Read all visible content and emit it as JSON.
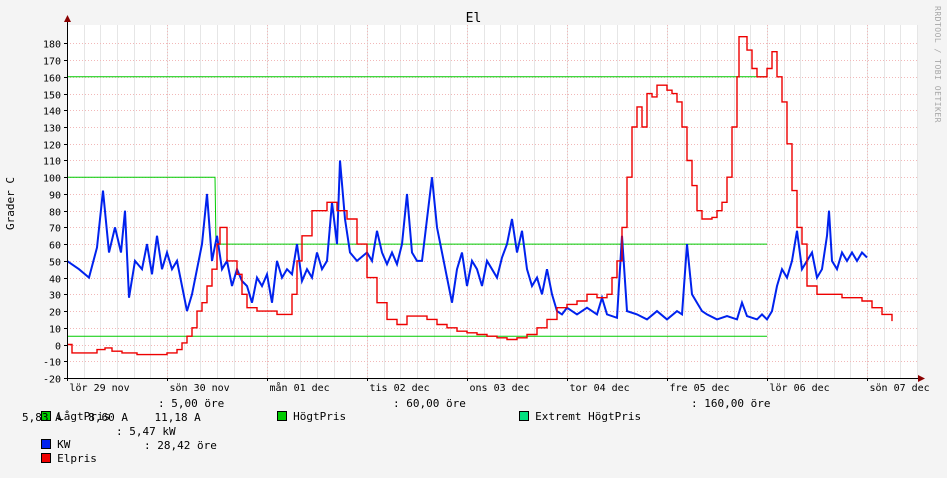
{
  "chart_data": {
    "type": "line",
    "title": "El",
    "ylabel": "Grader C",
    "ylim": [
      -20,
      185
    ],
    "yticks": [
      -20,
      -10,
      0,
      10,
      20,
      30,
      40,
      50,
      60,
      70,
      80,
      90,
      100,
      110,
      120,
      130,
      140,
      150,
      160,
      170,
      180
    ],
    "xlim_days": [
      0,
      8.5
    ],
    "xtick_labels": [
      "lör 29 nov",
      "sön 30 nov",
      "mån 01 dec",
      "tis 02 dec",
      "ons 03 dec",
      "tor 04 dec",
      "fre 05 dec",
      "lör 06 dec",
      "sön 07 dec"
    ],
    "watermark": "RRDTOOL / TOBI OETIKER",
    "series": [
      {
        "name": "LågtPris",
        "color": "#00cc00",
        "style": "line",
        "points": [
          [
            0,
            5
          ],
          [
            7.0,
            5
          ]
        ]
      },
      {
        "name": "HögtPris",
        "color": "#00cc00",
        "style": "line",
        "points": [
          [
            0,
            100
          ],
          [
            1.48,
            100
          ],
          [
            1.49,
            60
          ],
          [
            7.0,
            60
          ]
        ]
      },
      {
        "name": "Extremt HögtPris",
        "color": "#00cc00",
        "style": "line",
        "points": [
          [
            0,
            160
          ],
          [
            7.0,
            160
          ]
        ]
      },
      {
        "name": "KW",
        "color": "#0022ee",
        "style": "line",
        "points": [
          [
            0,
            50
          ],
          [
            0.12,
            45
          ],
          [
            0.22,
            40
          ],
          [
            0.3,
            58
          ],
          [
            0.36,
            92
          ],
          [
            0.42,
            55
          ],
          [
            0.48,
            70
          ],
          [
            0.54,
            55
          ],
          [
            0.58,
            80
          ],
          [
            0.62,
            28
          ],
          [
            0.68,
            50
          ],
          [
            0.75,
            45
          ],
          [
            0.8,
            60
          ],
          [
            0.85,
            42
          ],
          [
            0.9,
            65
          ],
          [
            0.95,
            45
          ],
          [
            1.0,
            55
          ],
          [
            1.05,
            45
          ],
          [
            1.1,
            50
          ],
          [
            1.15,
            35
          ],
          [
            1.2,
            20
          ],
          [
            1.25,
            30
          ],
          [
            1.3,
            45
          ],
          [
            1.35,
            60
          ],
          [
            1.4,
            90
          ],
          [
            1.45,
            50
          ],
          [
            1.5,
            65
          ],
          [
            1.55,
            45
          ],
          [
            1.6,
            50
          ],
          [
            1.65,
            35
          ],
          [
            1.7,
            45
          ],
          [
            1.75,
            38
          ],
          [
            1.8,
            35
          ],
          [
            1.85,
            25
          ],
          [
            1.9,
            40
          ],
          [
            1.95,
            35
          ],
          [
            2.0,
            42
          ],
          [
            2.05,
            25
          ],
          [
            2.1,
            50
          ],
          [
            2.15,
            40
          ],
          [
            2.2,
            45
          ],
          [
            2.25,
            42
          ],
          [
            2.3,
            60
          ],
          [
            2.35,
            38
          ],
          [
            2.4,
            45
          ],
          [
            2.45,
            40
          ],
          [
            2.5,
            55
          ],
          [
            2.55,
            45
          ],
          [
            2.6,
            50
          ],
          [
            2.65,
            85
          ],
          [
            2.7,
            60
          ],
          [
            2.73,
            110
          ],
          [
            2.78,
            75
          ],
          [
            2.83,
            55
          ],
          [
            2.9,
            50
          ],
          [
            3.0,
            55
          ],
          [
            3.05,
            50
          ],
          [
            3.1,
            68
          ],
          [
            3.15,
            55
          ],
          [
            3.2,
            48
          ],
          [
            3.25,
            55
          ],
          [
            3.3,
            48
          ],
          [
            3.35,
            60
          ],
          [
            3.4,
            90
          ],
          [
            3.45,
            55
          ],
          [
            3.5,
            50
          ],
          [
            3.55,
            50
          ],
          [
            3.6,
            75
          ],
          [
            3.65,
            100
          ],
          [
            3.7,
            70
          ],
          [
            3.75,
            55
          ],
          [
            3.8,
            40
          ],
          [
            3.85,
            25
          ],
          [
            3.9,
            45
          ],
          [
            3.95,
            55
          ],
          [
            4.0,
            35
          ],
          [
            4.05,
            50
          ],
          [
            4.1,
            45
          ],
          [
            4.15,
            35
          ],
          [
            4.2,
            50
          ],
          [
            4.25,
            45
          ],
          [
            4.3,
            40
          ],
          [
            4.35,
            52
          ],
          [
            4.4,
            60
          ],
          [
            4.45,
            75
          ],
          [
            4.5,
            55
          ],
          [
            4.55,
            68
          ],
          [
            4.6,
            45
          ],
          [
            4.65,
            35
          ],
          [
            4.7,
            40
          ],
          [
            4.75,
            30
          ],
          [
            4.8,
            45
          ],
          [
            4.85,
            30
          ],
          [
            4.9,
            20
          ],
          [
            4.95,
            18
          ],
          [
            5.0,
            22
          ],
          [
            5.1,
            18
          ],
          [
            5.2,
            22
          ],
          [
            5.3,
            18
          ],
          [
            5.35,
            28
          ],
          [
            5.4,
            18
          ],
          [
            5.5,
            16
          ],
          [
            5.55,
            65
          ],
          [
            5.6,
            20
          ],
          [
            5.7,
            18
          ],
          [
            5.8,
            15
          ],
          [
            5.9,
            20
          ],
          [
            6.0,
            15
          ],
          [
            6.1,
            20
          ],
          [
            6.15,
            18
          ],
          [
            6.2,
            60
          ],
          [
            6.25,
            30
          ],
          [
            6.3,
            25
          ],
          [
            6.35,
            20
          ],
          [
            6.4,
            18
          ],
          [
            6.5,
            15
          ],
          [
            6.6,
            17
          ],
          [
            6.7,
            15
          ],
          [
            6.75,
            25
          ],
          [
            6.8,
            17
          ],
          [
            6.9,
            15
          ],
          [
            6.95,
            18
          ],
          [
            7.0,
            15
          ],
          [
            7.05,
            20
          ],
          [
            7.1,
            35
          ],
          [
            7.15,
            45
          ],
          [
            7.2,
            40
          ],
          [
            7.25,
            50
          ],
          [
            7.3,
            68
          ],
          [
            7.35,
            45
          ],
          [
            7.4,
            50
          ],
          [
            7.45,
            55
          ],
          [
            7.5,
            40
          ],
          [
            7.55,
            45
          ],
          [
            7.6,
            65
          ],
          [
            7.62,
            80
          ],
          [
            7.65,
            50
          ],
          [
            7.7,
            45
          ],
          [
            7.75,
            55
          ],
          [
            7.8,
            50
          ],
          [
            7.85,
            55
          ],
          [
            7.9,
            50
          ],
          [
            7.95,
            55
          ],
          [
            8.0,
            52
          ]
        ]
      },
      {
        "name": "Elpris",
        "color": "#ee0000",
        "style": "step",
        "points": [
          [
            0,
            0
          ],
          [
            0.05,
            -5
          ],
          [
            0.15,
            -5
          ],
          [
            0.3,
            -3
          ],
          [
            0.38,
            -2
          ],
          [
            0.45,
            -4
          ],
          [
            0.55,
            -5
          ],
          [
            0.7,
            -6
          ],
          [
            0.9,
            -6
          ],
          [
            1.0,
            -5
          ],
          [
            1.1,
            -3
          ],
          [
            1.15,
            1
          ],
          [
            1.2,
            5
          ],
          [
            1.25,
            10
          ],
          [
            1.3,
            20
          ],
          [
            1.35,
            25
          ],
          [
            1.4,
            35
          ],
          [
            1.45,
            45
          ],
          [
            1.5,
            60
          ],
          [
            1.53,
            70
          ],
          [
            1.6,
            50
          ],
          [
            1.7,
            42
          ],
          [
            1.75,
            30
          ],
          [
            1.8,
            22
          ],
          [
            1.9,
            20
          ],
          [
            2.0,
            20
          ],
          [
            2.1,
            18
          ],
          [
            2.2,
            18
          ],
          [
            2.25,
            30
          ],
          [
            2.3,
            50
          ],
          [
            2.35,
            65
          ],
          [
            2.45,
            80
          ],
          [
            2.6,
            85
          ],
          [
            2.7,
            80
          ],
          [
            2.8,
            75
          ],
          [
            2.9,
            60
          ],
          [
            3.0,
            40
          ],
          [
            3.1,
            25
          ],
          [
            3.2,
            15
          ],
          [
            3.3,
            12
          ],
          [
            3.4,
            17
          ],
          [
            3.5,
            17
          ],
          [
            3.6,
            15
          ],
          [
            3.7,
            12
          ],
          [
            3.8,
            10
          ],
          [
            3.9,
            8
          ],
          [
            4.0,
            7
          ],
          [
            4.1,
            6
          ],
          [
            4.2,
            5
          ],
          [
            4.3,
            4
          ],
          [
            4.4,
            3
          ],
          [
            4.5,
            4
          ],
          [
            4.6,
            6
          ],
          [
            4.7,
            10
          ],
          [
            4.8,
            15
          ],
          [
            4.9,
            22
          ],
          [
            5.0,
            24
          ],
          [
            5.1,
            26
          ],
          [
            5.2,
            30
          ],
          [
            5.3,
            28
          ],
          [
            5.4,
            30
          ],
          [
            5.45,
            40
          ],
          [
            5.5,
            50
          ],
          [
            5.55,
            70
          ],
          [
            5.6,
            100
          ],
          [
            5.65,
            130
          ],
          [
            5.7,
            142
          ],
          [
            5.75,
            130
          ],
          [
            5.8,
            150
          ],
          [
            5.85,
            148
          ],
          [
            5.9,
            155
          ],
          [
            6.0,
            152
          ],
          [
            6.05,
            150
          ],
          [
            6.1,
            145
          ],
          [
            6.15,
            130
          ],
          [
            6.2,
            110
          ],
          [
            6.25,
            95
          ],
          [
            6.3,
            80
          ],
          [
            6.35,
            75
          ],
          [
            6.45,
            76
          ],
          [
            6.5,
            80
          ],
          [
            6.55,
            85
          ],
          [
            6.6,
            100
          ],
          [
            6.65,
            130
          ],
          [
            6.7,
            160
          ],
          [
            6.72,
            184
          ],
          [
            6.8,
            176
          ],
          [
            6.85,
            165
          ],
          [
            6.9,
            160
          ],
          [
            7.0,
            165
          ],
          [
            7.05,
            175
          ],
          [
            7.1,
            160
          ],
          [
            7.15,
            145
          ],
          [
            7.2,
            120
          ],
          [
            7.25,
            92
          ],
          [
            7.3,
            70
          ],
          [
            7.35,
            60
          ],
          [
            7.4,
            35
          ],
          [
            7.5,
            30
          ],
          [
            7.6,
            30
          ],
          [
            7.7,
            30
          ],
          [
            7.75,
            28
          ],
          [
            7.85,
            28
          ],
          [
            7.95,
            26
          ],
          [
            8.05,
            22
          ],
          [
            8.15,
            18
          ],
          [
            8.25,
            14
          ]
        ]
      }
    ]
  },
  "legend": {
    "row1": [
      {
        "label": "LågtPris",
        "value": ": 5,00 öre",
        "color": "#00cc00"
      },
      {
        "label": "HögtPris",
        "value": ": 60,00 öre",
        "color": "#00cc00"
      },
      {
        "label": "Extremt HögtPris",
        "value": ": 160,00 öre",
        "color": "#00e080"
      }
    ],
    "row2": "5,83 A    8,60 A    11,18 A",
    "row3": {
      "label": "KW",
      "value": ": 5,47 kW",
      "color": "#0022ee"
    },
    "row4": {
      "label": "Elpris",
      "value": ": 28,42 öre",
      "color": "#ee0000"
    }
  }
}
